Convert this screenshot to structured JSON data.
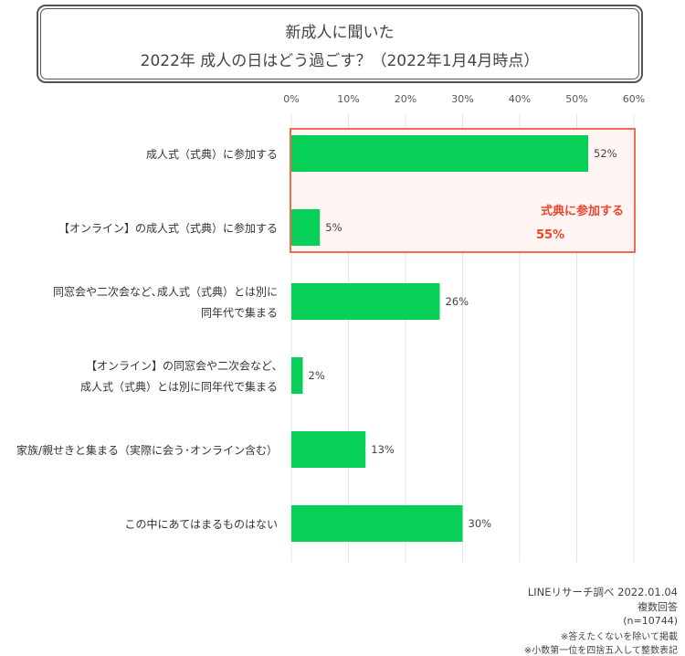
{
  "title": {
    "line1": "新成人に聞いた",
    "line2": "2022年 成人の日はどう過ごす？（2022年1月4月時点）"
  },
  "chart_data": {
    "type": "bar",
    "orientation": "horizontal",
    "categories": [
      [
        "成人式（式典）に参加する"
      ],
      [
        "【オンライン】の成人式（式典）に参加する"
      ],
      [
        "同窓会や二次会など､成人式（式典）とは別に",
        "同年代で集まる"
      ],
      [
        "【オンライン】の同窓会や二次会など､",
        "成人式（式典）とは別に同年代で集まる"
      ],
      [
        "家族/親せきと集まる（実際に会う･オンライン含む）"
      ],
      [
        "この中にあてはまるものはない"
      ]
    ],
    "values": [
      52,
      5,
      26,
      2,
      13,
      30
    ],
    "value_labels": [
      "52%",
      "5%",
      "26%",
      "2%",
      "13%",
      "30%"
    ],
    "xlim": [
      0,
      60
    ],
    "xticks": [
      "0%",
      "10%",
      "20%",
      "30%",
      "40%",
      "50%",
      "60%"
    ],
    "tick_values": [
      0,
      10,
      20,
      30,
      40,
      50,
      60
    ],
    "bar_color": "#06d058",
    "grid": true,
    "annotation": {
      "text": "式典に参加する",
      "value": "55%",
      "spans_categories": [
        0,
        1
      ],
      "border_color": "#f26b4f",
      "fill_color": "#fff5f3",
      "text_color": "#f0452c"
    }
  },
  "footer": {
    "source": "LINEリサーチ調べ 2022.01.04",
    "note1": "複数回答",
    "note2": "(n=10744)",
    "note3": "※答えたくないを除いて掲載",
    "note4": "※小数第一位を四捨五入して整数表記"
  }
}
